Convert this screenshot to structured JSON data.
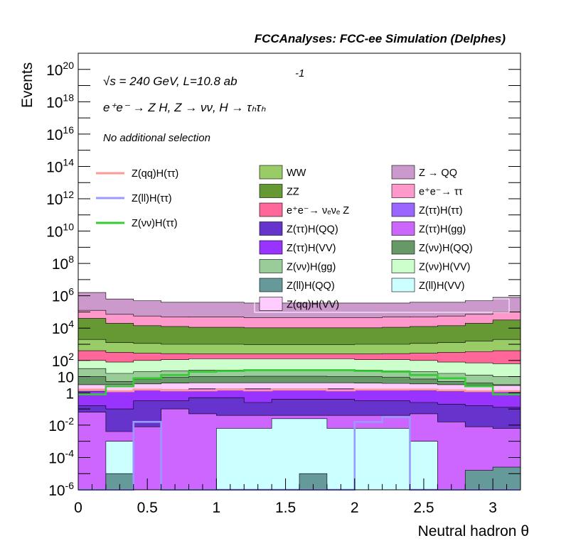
{
  "chart_data": {
    "type": "area",
    "title": "FCCAnalyses: FCC-ee Simulation (Delphes)",
    "annotations": {
      "line1": "√s = 240 GeV, L=10.8 ab",
      "line1_sup": "-1",
      "line2": "e⁺e⁻ → Z H, Z → νν, H → τₕτₕ",
      "line3": "No additional selection"
    },
    "xlabel": "Neutral hadron θ",
    "ylabel": "Events",
    "xlim": [
      0,
      3.2
    ],
    "ylim_log10": [
      -6,
      21
    ],
    "y_scale": "log",
    "x_ticks": [
      "0",
      "0.5",
      "1",
      "1.5",
      "2",
      "2.5",
      "3"
    ],
    "y_ticks": [
      {
        "base": "1",
        "exp": ""
      },
      {
        "base": "10",
        "exp": ""
      },
      {
        "base": "10",
        "exp": "-6"
      },
      {
        "base": "10",
        "exp": "-4"
      },
      {
        "base": "10",
        "exp": "-2"
      },
      {
        "base": "10",
        "exp": "2"
      },
      {
        "base": "10",
        "exp": "4"
      },
      {
        "base": "10",
        "exp": "6"
      },
      {
        "base": "10",
        "exp": "8"
      },
      {
        "base": "10",
        "exp": "10"
      },
      {
        "base": "10",
        "exp": "12"
      },
      {
        "base": "10",
        "exp": "14"
      },
      {
        "base": "10",
        "exp": "16"
      },
      {
        "base": "10",
        "exp": "18"
      },
      {
        "base": "10",
        "exp": "20"
      }
    ],
    "y_tick_values": [
      0,
      1,
      -6,
      -4,
      -2,
      2,
      4,
      6,
      8,
      10,
      12,
      14,
      16,
      18,
      20
    ],
    "bin_edges": [
      0,
      0.2,
      0.4,
      0.6,
      0.8,
      1.0,
      1.2,
      1.4,
      1.6,
      1.8,
      2.0,
      2.2,
      2.4,
      2.6,
      2.8,
      3.0,
      3.2
    ],
    "stack_top_log10": {
      "Z → QQ": [
        6.2,
        5.8,
        5.7,
        5.6,
        5.6,
        5.6,
        5.55,
        5.55,
        5.55,
        5.55,
        5.55,
        5.55,
        5.6,
        5.6,
        5.7,
        5.9
      ],
      "e⁺e⁻ → ττ": [
        5.1,
        4.85,
        4.75,
        4.7,
        4.68,
        4.68,
        4.65,
        4.65,
        4.65,
        4.65,
        4.65,
        4.68,
        4.7,
        4.75,
        4.85,
        5.0
      ],
      "ZZ": [
        4.6,
        4.3,
        4.15,
        4.1,
        4.05,
        4.05,
        4.02,
        4.02,
        4.02,
        4.02,
        4.02,
        4.05,
        4.1,
        4.15,
        4.3,
        4.5
      ],
      "WW": [
        3.3,
        3.1,
        3.05,
        3.0,
        3.0,
        3.0,
        2.98,
        2.98,
        2.98,
        2.98,
        3.0,
        3.0,
        3.05,
        3.1,
        3.2,
        3.3
      ],
      "e⁺e⁻ → νₑνₑ Z": [
        2.6,
        2.5,
        2.45,
        2.42,
        2.4,
        2.4,
        2.4,
        2.4,
        2.4,
        2.4,
        2.4,
        2.42,
        2.45,
        2.5,
        2.55,
        2.6
      ],
      "Z(νν)H(VV)": [
        2.0,
        1.9,
        2.0,
        2.05,
        2.1,
        2.1,
        2.1,
        2.1,
        2.1,
        2.1,
        2.05,
        2.05,
        2.0,
        1.9,
        1.85,
        1.8
      ],
      "Z(νν)H(gg)": [
        1.5,
        1.2,
        1.3,
        1.35,
        1.4,
        1.4,
        1.42,
        1.42,
        1.42,
        1.4,
        1.4,
        1.35,
        1.3,
        1.2,
        1.1,
        1.0
      ],
      "Z(νν)H(QQ)": [
        1.0,
        0.7,
        0.85,
        0.95,
        1.0,
        1.0,
        1.02,
        1.02,
        1.02,
        1.0,
        1.0,
        0.95,
        0.85,
        0.7,
        0.6,
        0.5
      ],
      "Z(qq)H(VV)": [
        0.5,
        0.5,
        0.55,
        0.6,
        0.62,
        0.62,
        0.62,
        0.62,
        0.62,
        0.62,
        0.6,
        0.58,
        0.55,
        0.5,
        0.45,
        0.45
      ],
      "Z(ττ)H(VV)": [
        0.1,
        0.1,
        0.2,
        0.2,
        0.25,
        0.25,
        0.25,
        0.25,
        0.25,
        0.25,
        0.2,
        0.2,
        0.15,
        0.1,
        0.05,
        0.05
      ],
      "Z(ττ)H(QQ)": [
        -0.8,
        -1.0,
        -0.5,
        -0.5,
        -0.3,
        -0.3,
        -0.6,
        -0.4,
        -0.4,
        -0.4,
        -0.5,
        -0.5,
        -0.6,
        -0.7,
        -0.8,
        -0.9
      ],
      "Z(ττ)H(gg)": [
        -1.2,
        -2.4,
        -2.1,
        -1.0,
        -1.3,
        -1.4,
        -1.4,
        -1.4,
        -1.4,
        -1.4,
        -1.4,
        -1.4,
        -1.3,
        -1.8,
        -2.1,
        -2.2
      ],
      "Z(ll)H(VV)": [
        -6,
        -3.0,
        -6,
        -6,
        -6,
        -2.2,
        -2.2,
        -1.6,
        -1.6,
        -2.2,
        -2.2,
        -2.2,
        -3.0,
        -6,
        -6,
        -6
      ],
      "Z(ll)H(QQ)": [
        -6,
        -5.0,
        -6,
        -6,
        -6,
        -6,
        -6,
        -6,
        -5.0,
        -6,
        -6,
        -6,
        -6,
        -6,
        -4.8,
        -4.6
      ]
    },
    "lines_log10": {
      "Z(qq)H(ττ)": [
        0.2,
        0.1,
        0.2,
        0.15,
        0.15,
        0.2,
        0.15,
        0.2,
        0.2,
        0.15,
        0.2,
        0.2,
        0.2,
        0.15,
        0.1,
        0.1
      ],
      "Z(ll)H(ττ)": [
        -6,
        -6,
        -1.8,
        -6,
        -6,
        -6,
        -6,
        -6,
        -6,
        -6,
        -1.8,
        -1.5,
        -6,
        -6,
        -6,
        -6
      ],
      "Z(νν)H(ττ)": [
        -0.1,
        0.4,
        0.9,
        1.1,
        1.3,
        1.35,
        1.4,
        1.4,
        1.4,
        1.4,
        1.35,
        1.3,
        1.1,
        0.9,
        0.4,
        -0.1
      ]
    },
    "legend_placement": "top, three columns inside plot",
    "legend_lines": [
      {
        "name": "Z(qq)H(ττ)",
        "color": "#ff9999"
      },
      {
        "name": "Z(ll)H(ττ)",
        "color": "#9999ff"
      },
      {
        "name": "Z(νν)H(ττ)",
        "color": "#33cc33"
      }
    ],
    "legend_fills": [
      {
        "name": "WW",
        "color": "#99cc66"
      },
      {
        "name": "Z → QQ",
        "color": "#cc99cc"
      },
      {
        "name": "ZZ",
        "color": "#669933"
      },
      {
        "name": "e⁺e⁻→ ττ",
        "color": "#ff99cc"
      },
      {
        "name": "e⁺e⁻→ νₑνₑ Z",
        "color": "#ff6699"
      },
      {
        "name": "Z(ττ)H(ττ)",
        "color": "#9966ff"
      },
      {
        "name": "Z(ττ)H(QQ)",
        "color": "#6633cc"
      },
      {
        "name": "Z(ττ)H(gg)",
        "color": "#cc66ff"
      },
      {
        "name": "Z(ττ)H(VV)",
        "color": "#9933ff"
      },
      {
        "name": "Z(νν)H(QQ)",
        "color": "#669966"
      },
      {
        "name": "Z(νν)H(gg)",
        "color": "#99cc99"
      },
      {
        "name": "Z(νν)H(VV)",
        "color": "#ccffcc"
      },
      {
        "name": "Z(ll)H(QQ)",
        "color": "#669999"
      },
      {
        "name": "Z(ll)H(VV)",
        "color": "#ccffff"
      },
      {
        "name": "Z(qq)H(VV)",
        "color": "#ffccff"
      }
    ],
    "stack_colors": {
      "Z → QQ": "#cc99cc",
      "e⁺e⁻ → ττ": "#ff99cc",
      "ZZ": "#669933",
      "WW": "#99cc66",
      "e⁺e⁻ → νₑνₑ Z": "#ff6699",
      "Z(νν)H(VV)": "#ccffcc",
      "Z(νν)H(gg)": "#99cc99",
      "Z(νν)H(QQ)": "#669966",
      "Z(qq)H(VV)": "#ffccff",
      "Z(ττ)H(VV)": "#9933ff",
      "Z(ττ)H(QQ)": "#6633cc",
      "Z(ττ)H(gg)": "#cc66ff",
      "Z(ll)H(VV)": "#ccffff",
      "Z(ll)H(QQ)": "#669999"
    }
  }
}
